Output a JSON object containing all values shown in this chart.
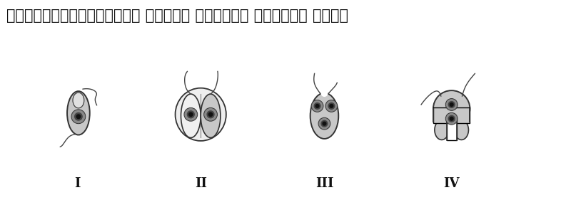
{
  "title": "ಲೀಶ್ನೆನಿಯಾದಲ್ಲಿ ಬೈನರಿ ವಿದಳನದ ಸರಿಯಾದ ಕ್ರಮ",
  "labels": [
    "I",
    "II",
    "III",
    "IV"
  ],
  "bg_color": "#ffffff",
  "body_color": "#c8c8c8",
  "body_edge": "#333333",
  "nucleus_gray1": "#888888",
  "nucleus_gray2": "#444444",
  "nucleus_dark": "#111111",
  "flagella_color": "#444444",
  "title_fontsize": 15,
  "label_fontsize": 13
}
